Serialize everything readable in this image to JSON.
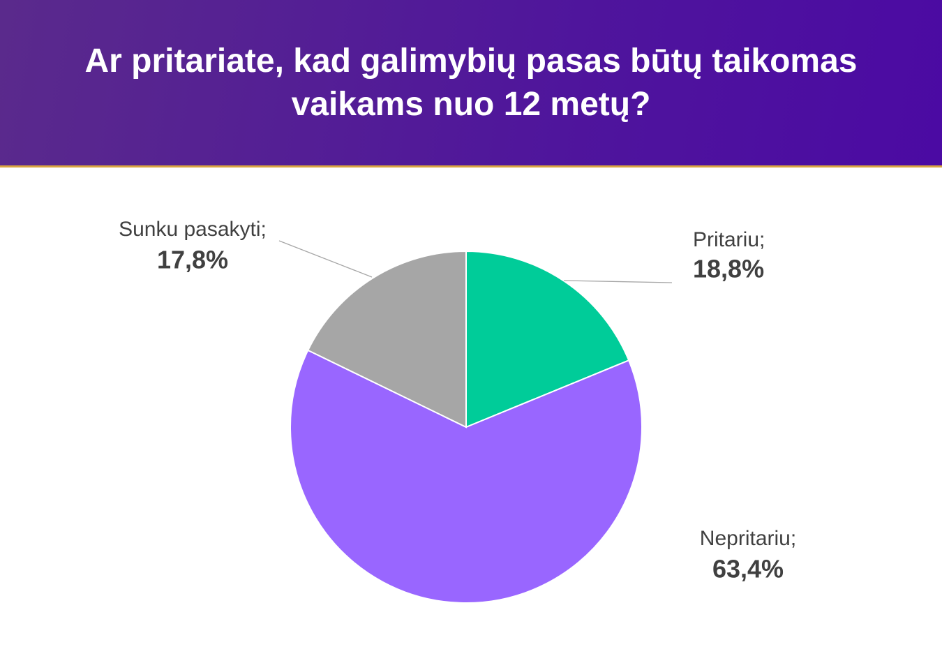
{
  "chart_data": {
    "type": "pie",
    "title": "Ar pritariate, kad galimybių pasas būtų taikomas vaikams nuo 12 metų?",
    "categories": [
      "Pritariu;",
      "Nepritariu;",
      "Sunku pasakyti;"
    ],
    "values": [
      18.8,
      63.4,
      17.8
    ],
    "value_labels": [
      "18,8%",
      "63,4%",
      "17,8%"
    ],
    "colors": [
      "#00cc99",
      "#9966ff",
      "#a6a6a6"
    ]
  }
}
